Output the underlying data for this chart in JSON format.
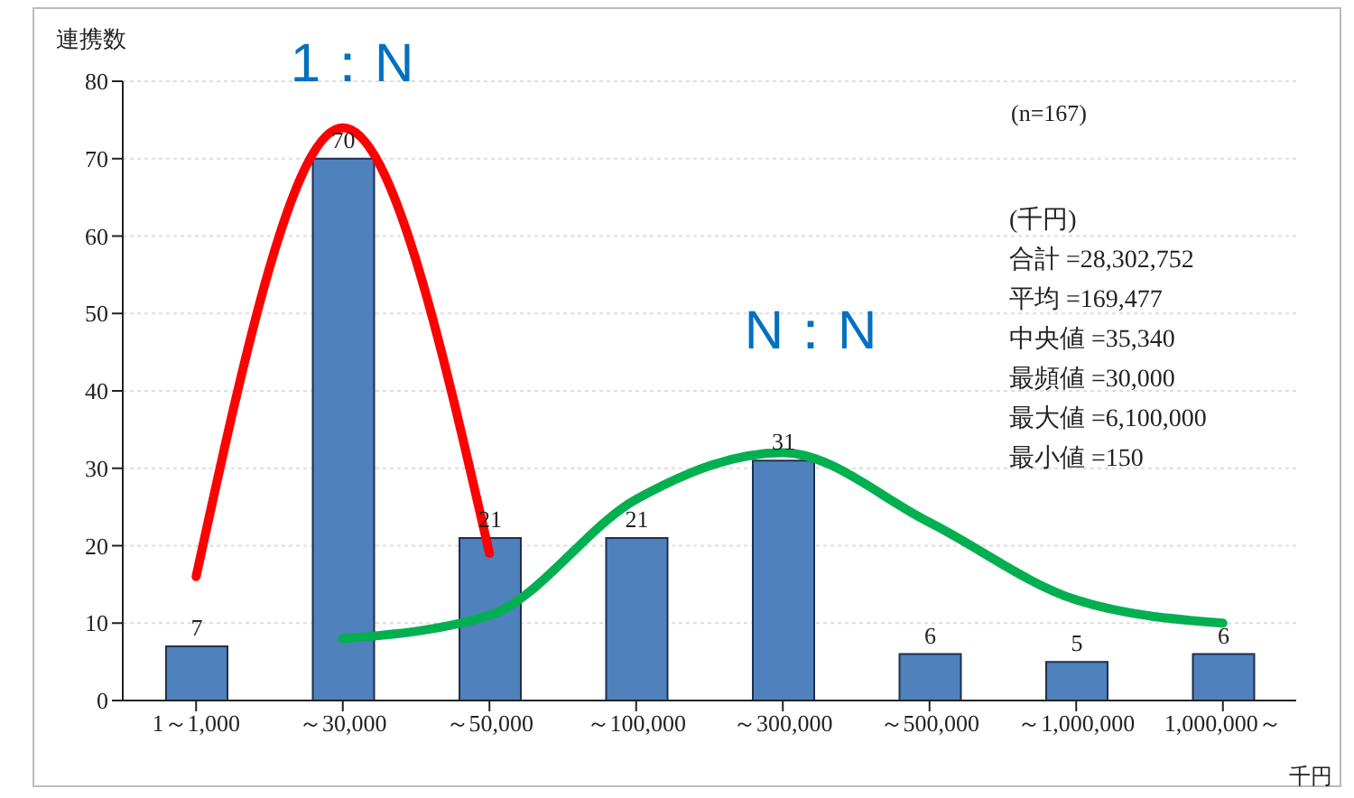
{
  "chart_data": {
    "type": "bar",
    "ylabel": "連携数",
    "xlabel": "千円",
    "categories": [
      "1～1,000",
      "～30,000",
      "～50,000",
      "～100,000",
      "～300,000",
      "～500,000",
      "～1,000,000",
      "1,000,000～"
    ],
    "series": [
      {
        "color": "#4f81bd",
        "values": [
          7,
          70,
          21,
          21,
          31,
          6,
          5,
          6
        ],
        "value_labels": [
          "7",
          "70",
          "21",
          "21",
          "31",
          "6",
          "5",
          "6"
        ]
      },
      {
        "type": "line",
        "color": "#ff0000",
        "values": [
          16,
          74,
          19,
          null,
          null,
          null,
          null,
          null
        ]
      },
      {
        "type": "line",
        "color": "#00b050",
        "values": [
          null,
          8,
          11,
          26,
          32,
          23,
          13,
          10
        ]
      }
    ],
    "marker": "none",
    "ylim": [
      0,
      80
    ],
    "yticks": [
      0,
      10,
      20,
      30,
      40,
      50,
      60,
      70,
      80
    ],
    "grid": "y",
    "annotations": [
      "1：N",
      "N：N",
      "(n=167)",
      "(千円)",
      "合計 =28,302,752",
      "平均 =169,477",
      "中央値 =35,340",
      "最頻値 =30,000",
      "最大値 =6,100,000",
      "最小値 =150"
    ]
  }
}
